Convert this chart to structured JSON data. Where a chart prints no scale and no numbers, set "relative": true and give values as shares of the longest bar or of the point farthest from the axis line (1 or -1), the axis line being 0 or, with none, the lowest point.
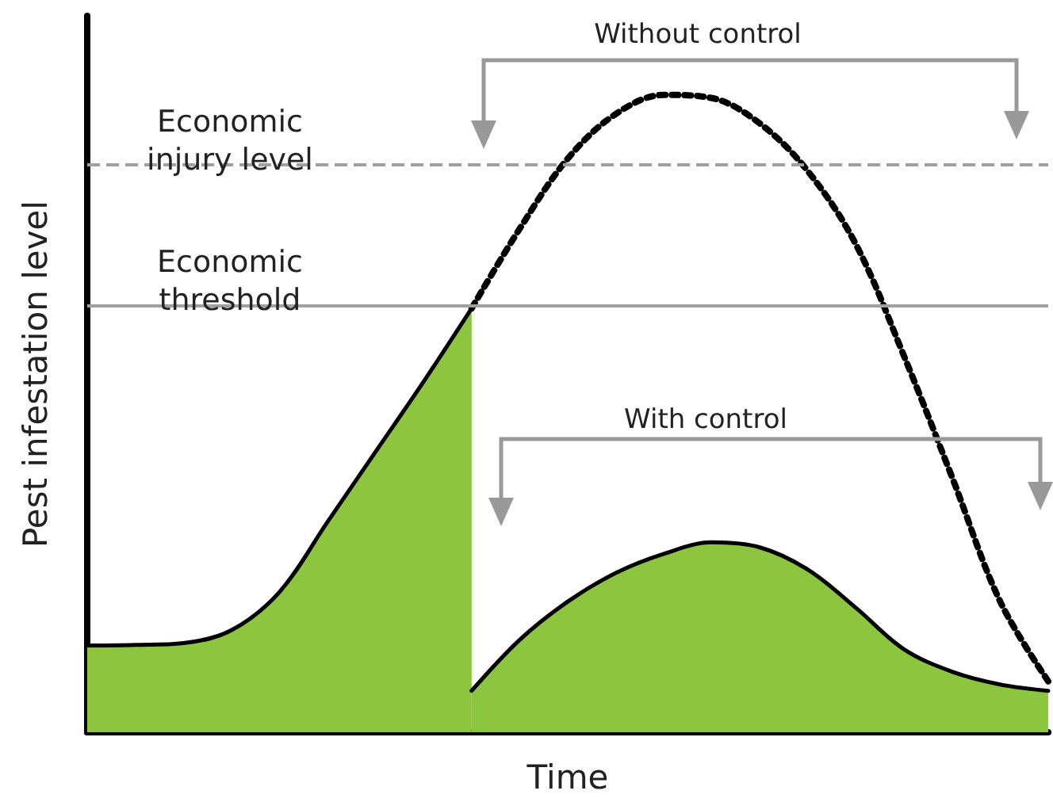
{
  "chart_data": {
    "type": "area",
    "relative": true,
    "xlabel": "Time",
    "ylabel": "Pest infestation level",
    "categories": [
      null,
      null,
      null,
      null,
      null,
      null,
      null,
      null,
      null,
      null,
      null,
      null,
      null,
      null,
      null,
      null,
      null,
      null,
      null,
      null,
      null
    ],
    "series": [
      {
        "color": "#8cc63f",
        "values": [
          0.136,
          0.137,
          0.14,
          0.16,
          0.22,
          0.33,
          0.44,
          0.55,
          0.665,
          null,
          null,
          null,
          null,
          null,
          null,
          null,
          null,
          null,
          null,
          null,
          null
        ]
      },
      {
        "color": "#8cc63f",
        "values": [
          null,
          null,
          null,
          null,
          null,
          null,
          null,
          null,
          0.065,
          0.145,
          0.205,
          0.25,
          0.28,
          0.298,
          0.29,
          0.255,
          0.195,
          0.13,
          0.095,
          0.075,
          0.065
        ]
      },
      {
        "type": "line",
        "color": "#000000",
        "line_style": "dotted",
        "values": [
          null,
          null,
          null,
          null,
          null,
          null,
          null,
          null,
          0.665,
          0.79,
          0.9,
          0.97,
          1.0,
          0.995,
          0.955,
          0.88,
          0.765,
          0.59,
          0.4,
          0.205,
          0.08
        ]
      }
    ],
    "ref_lines": [
      {
        "axis": "y",
        "value": 0.888,
        "label": "Economic\ninjury level",
        "color": "#a0a0a0",
        "line_style": "dashed"
      },
      {
        "axis": "y",
        "value": 0.67,
        "label": "Economic\nthreshold",
        "color": "#a0a0a0",
        "line_style": "solid"
      }
    ],
    "annotations": [
      "Without control",
      "With control"
    ],
    "grid": false,
    "marker": "none"
  }
}
